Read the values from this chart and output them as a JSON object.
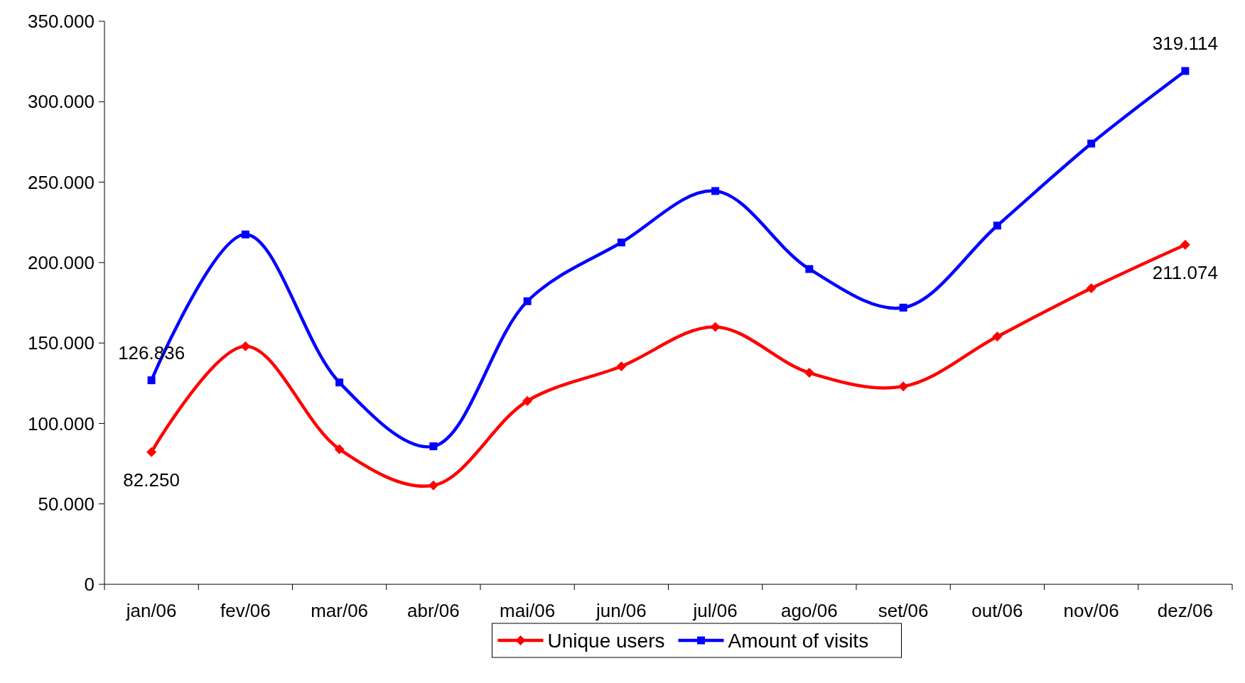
{
  "chart_data": {
    "type": "line",
    "categories": [
      "jan/06",
      "fev/06",
      "mar/06",
      "abr/06",
      "mai/06",
      "jun/06",
      "jul/06",
      "ago/06",
      "set/06",
      "out/06",
      "nov/06",
      "dez/06"
    ],
    "series": [
      {
        "name": "Unique users",
        "color": "#ff0000",
        "marker": "diamond",
        "values": [
          82250,
          148000,
          84000,
          61500,
          114000,
          135500,
          160000,
          131500,
          123000,
          154000,
          184000,
          211074
        ],
        "value_labels": [
          "82.250",
          null,
          null,
          null,
          null,
          null,
          null,
          null,
          null,
          null,
          null,
          "211.074"
        ]
      },
      {
        "name": "Amount of visits",
        "color": "#0000ff",
        "marker": "square",
        "values": [
          126836,
          217500,
          125500,
          85800,
          176000,
          212500,
          244500,
          196000,
          172000,
          223000,
          274000,
          319114
        ],
        "value_labels": [
          "126.836",
          null,
          null,
          null,
          null,
          null,
          null,
          null,
          null,
          null,
          null,
          "319.114"
        ]
      }
    ],
    "ylim": [
      0,
      350000
    ],
    "yticks": [
      0,
      {
        "value": 50000,
        "label": "50.000"
      },
      {
        "value": 100000,
        "label": "100.000"
      },
      {
        "value": 150000,
        "label": "150.000"
      },
      {
        "value": 200000,
        "label": "200.000"
      },
      {
        "value": 250000,
        "label": "250.000"
      },
      {
        "value": 300000,
        "label": "300.000"
      },
      {
        "value": 350000,
        "label": "350.000"
      }
    ],
    "legend": "bottom",
    "grid": false,
    "line_style": "solid"
  }
}
